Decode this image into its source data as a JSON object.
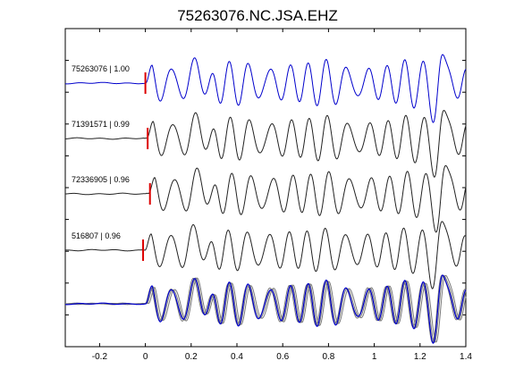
{
  "chart_data": {
    "type": "line",
    "title": "75263076.NC.JSA.EHZ",
    "xlabel": "",
    "ylabel": "",
    "xlim": [
      -0.35,
      1.4
    ],
    "x_ticks": [
      -0.2,
      0,
      0.2,
      0.4,
      0.6,
      0.8,
      1,
      1.2,
      1.4
    ],
    "x_tick_labels": [
      "-0.2",
      "0",
      "0.2",
      "0.4",
      "0.6",
      "0.8",
      "1",
      "1.2",
      "1.4"
    ],
    "grid": false,
    "pick_color": "#dd0000",
    "template_color": "#0000cc",
    "trace_color": "#222222",
    "overlay_color": "#7a7a7a",
    "traces": [
      {
        "label": "75263076 | 1.00",
        "event": "75263076",
        "cc": 1.0,
        "pick_time": 0.0,
        "shift": 0.0,
        "color": "#0000cc"
      },
      {
        "label": "71391571 | 0.99",
        "event": "71391571",
        "cc": 0.99,
        "pick_time": 0.01,
        "shift": 0.005,
        "color": "#222222"
      },
      {
        "label": "72336905 | 0.96",
        "event": "72336905",
        "cc": 0.96,
        "pick_time": 0.02,
        "shift": 0.012,
        "color": "#222222"
      },
      {
        "label": "516807 | 0.96",
        "event": "516807",
        "cc": 0.96,
        "pick_time": -0.01,
        "shift": -0.004,
        "color": "#222222"
      }
    ],
    "stack": {
      "label": "",
      "description_visible": false
    }
  }
}
